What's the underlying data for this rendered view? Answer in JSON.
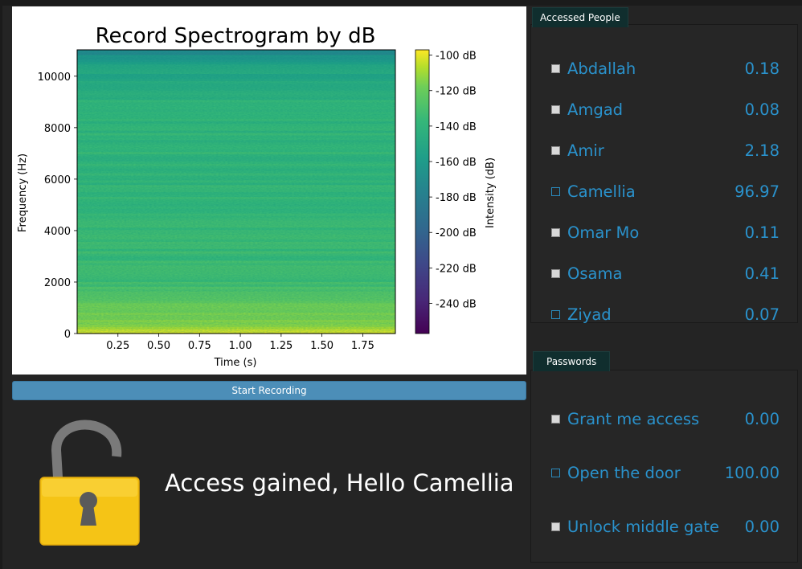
{
  "chart_data": {
    "type": "heatmap",
    "title": "Record Spectrogram by dB",
    "xlabel": "Time (s)",
    "ylabel": "Frequency (Hz)",
    "colorbar_label": "Intensity (dB)",
    "x_ticks": [
      "0.25",
      "0.50",
      "0.75",
      "1.00",
      "1.25",
      "1.50",
      "1.75"
    ],
    "x_tick_values": [
      0.25,
      0.5,
      0.75,
      1.0,
      1.25,
      1.5,
      1.75
    ],
    "xlim": [
      0.0,
      1.95
    ],
    "y_ticks": [
      "0",
      "2000",
      "4000",
      "6000",
      "8000",
      "10000"
    ],
    "y_tick_values": [
      0,
      2000,
      4000,
      6000,
      8000,
      10000
    ],
    "ylim": [
      0,
      11025
    ],
    "colorbar_ticks": [
      "-100 dB",
      "-120 dB",
      "-140 dB",
      "-160 dB",
      "-180 dB",
      "-200 dB",
      "-220 dB",
      "-240 dB"
    ],
    "colorbar_tick_values": [
      -100,
      -120,
      -140,
      -160,
      -180,
      -200,
      -220,
      -240
    ],
    "colorbar_range": [
      -257,
      -97
    ],
    "colormap": "viridis",
    "intensity_profile_db": [
      {
        "freq": 0,
        "db": -105
      },
      {
        "freq": 150,
        "db": -112
      },
      {
        "freq": 400,
        "db": -125
      },
      {
        "freq": 800,
        "db": -130
      },
      {
        "freq": 2000,
        "db": -145
      },
      {
        "freq": 5000,
        "db": -150
      },
      {
        "freq": 9000,
        "db": -152
      },
      {
        "freq": 10500,
        "db": -165
      },
      {
        "freq": 11025,
        "db": -185
      }
    ]
  },
  "record_button": {
    "label": "Start Recording",
    "color": "#4c8eb8"
  },
  "status": {
    "message": "Access gained, Hello Camellia",
    "lock_state": "unlocked"
  },
  "people": {
    "title": "Accessed People",
    "items": [
      {
        "name": "Abdallah",
        "value": "0.18",
        "checked": true
      },
      {
        "name": "Amgad",
        "value": "0.08",
        "checked": true
      },
      {
        "name": "Amir",
        "value": "2.18",
        "checked": true
      },
      {
        "name": "Camellia",
        "value": "96.97",
        "checked": false
      },
      {
        "name": "Omar Mo",
        "value": "0.11",
        "checked": true
      },
      {
        "name": "Osama",
        "value": "0.41",
        "checked": true
      },
      {
        "name": "Ziyad",
        "value": "0.07",
        "checked": false
      }
    ]
  },
  "passwords": {
    "title": "Passwords",
    "items": [
      {
        "name": "Grant me access",
        "value": "0.00",
        "checked": true
      },
      {
        "name": "Open the door",
        "value": "100.00",
        "checked": false
      },
      {
        "name": "Unlock middle gate",
        "value": "0.00",
        "checked": true
      }
    ]
  },
  "colors": {
    "accent_text": "#2a92cc",
    "background": "#242424",
    "lock_body": "#f5c416",
    "lock_shackle": "#7a7a7a"
  }
}
